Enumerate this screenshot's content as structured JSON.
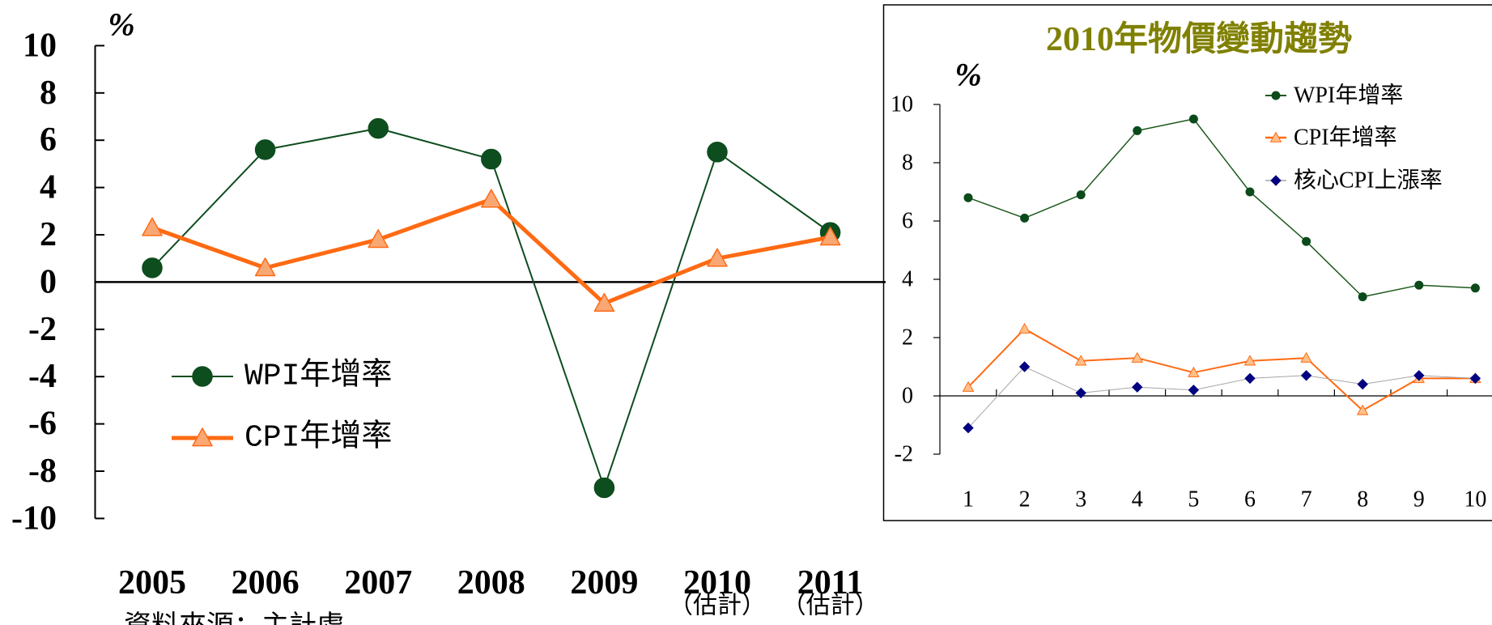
{
  "chart_data": [
    {
      "type": "line",
      "unit": "%",
      "categories": [
        "2005",
        "2006",
        "2007",
        "2008",
        "2009",
        "2010",
        "2011"
      ],
      "category_notes": [
        null,
        null,
        null,
        null,
        null,
        "（估計）",
        "（估計）"
      ],
      "ylim": [
        -10,
        10
      ],
      "yticks": [
        10,
        8,
        6,
        4,
        2,
        0,
        -2,
        -4,
        -6,
        -8,
        -10
      ],
      "grid": false,
      "legend_position": "bottom-left",
      "series": [
        {
          "name": "WPI年增率",
          "values": [
            0.6,
            5.6,
            6.5,
            5.2,
            -8.7,
            5.5,
            2.1
          ],
          "color": "#0d4d1e",
          "marker": "circle"
        },
        {
          "name": "CPI年增率",
          "values": [
            2.3,
            0.6,
            1.8,
            3.5,
            -0.9,
            1.0,
            1.9
          ],
          "color": "#ff6a13",
          "marker": "triangle",
          "marker_fill": "#f9a874"
        }
      ],
      "source": "資料來源：主計處。"
    },
    {
      "type": "line",
      "title": "2010年物價變動趨勢",
      "title_color": "#808000",
      "unit": "%",
      "categories": [
        "1",
        "2",
        "3",
        "4",
        "5",
        "6",
        "7",
        "8",
        "9",
        "10"
      ],
      "ylim": [
        -2,
        10
      ],
      "yticks": [
        10,
        8,
        6,
        4,
        2,
        0,
        -2
      ],
      "grid": false,
      "legend_position": "top-right",
      "series": [
        {
          "name": "WPI年增率",
          "values": [
            6.8,
            6.1,
            6.9,
            9.1,
            9.5,
            7.0,
            5.3,
            3.4,
            3.8,
            3.7
          ],
          "color": "#1e5a1e",
          "marker": "circle",
          "marker_fill": "#0b4a1b"
        },
        {
          "name": "CPI年增率",
          "values": [
            0.3,
            2.3,
            1.2,
            1.3,
            0.8,
            1.2,
            1.3,
            -0.5,
            0.6,
            0.6
          ],
          "color": "#ff6a13",
          "marker": "triangle",
          "marker_fill": "#ffc08a"
        },
        {
          "name": "核心CPI上漲率",
          "values": [
            -1.1,
            1.0,
            0.1,
            0.3,
            0.2,
            0.6,
            0.7,
            0.4,
            0.7,
            0.6
          ],
          "color": "#a6a6a6",
          "marker": "diamond",
          "marker_fill": "#000080"
        }
      ]
    }
  ]
}
